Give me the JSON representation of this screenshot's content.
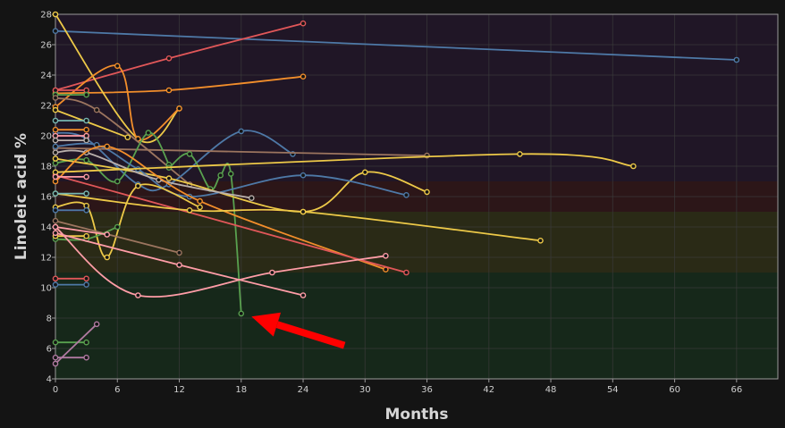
{
  "chart_data": {
    "type": "line",
    "title": "",
    "xlabel": "Months",
    "ylabel": "Linoleic acid %",
    "xlim": [
      0,
      70
    ],
    "ylim": [
      4,
      28
    ],
    "x_ticks": [
      0,
      6,
      12,
      18,
      24,
      30,
      36,
      42,
      48,
      54,
      60,
      66
    ],
    "y_ticks": [
      4,
      6,
      8,
      10,
      12,
      14,
      16,
      18,
      20,
      22,
      24,
      26,
      28
    ],
    "grid": true,
    "bands": [
      {
        "from": 4,
        "to": 11,
        "color": "#16281a"
      },
      {
        "from": 11,
        "to": 15,
        "color": "#2a2a16"
      },
      {
        "from": 15,
        "to": 17,
        "color": "#2c1618"
      },
      {
        "from": 17,
        "to": 28,
        "color": "#201626"
      }
    ],
    "series": [
      {
        "color": "#4e79a7",
        "x": [
          0,
          66
        ],
        "y": [
          26.9,
          25.0
        ]
      },
      {
        "color": "#e15759",
        "x": [
          0,
          11,
          24
        ],
        "y": [
          23.0,
          25.1,
          27.4
        ]
      },
      {
        "color": "#f28e2b",
        "x": [
          0,
          11,
          24
        ],
        "y": [
          22.8,
          23.0,
          23.9
        ]
      },
      {
        "color": "#edc948",
        "x": [
          0,
          8,
          12
        ],
        "y": [
          28.0,
          19.8,
          21.8
        ]
      },
      {
        "color": "#f28e2b",
        "x": [
          0,
          6,
          8,
          12
        ],
        "y": [
          21.9,
          24.6,
          19.8,
          21.8
        ]
      },
      {
        "color": "#e15759",
        "x": [
          0,
          3
        ],
        "y": [
          23.0,
          23.0
        ]
      },
      {
        "color": "#59a14f",
        "x": [
          0,
          3
        ],
        "y": [
          22.7,
          22.7
        ]
      },
      {
        "color": "#9c755f",
        "x": [
          0,
          4,
          13
        ],
        "y": [
          22.5,
          21.7,
          16.8
        ]
      },
      {
        "color": "#edc948",
        "x": [
          0,
          7
        ],
        "y": [
          21.7,
          19.9
        ]
      },
      {
        "color": "#76b7b2",
        "x": [
          0,
          3
        ],
        "y": [
          21.0,
          21.0
        ]
      },
      {
        "color": "#4e79a7",
        "x": [
          0,
          3,
          8,
          11,
          18,
          23
        ],
        "y": [
          20.2,
          19.8,
          16.8,
          16.8,
          20.3,
          18.8
        ]
      },
      {
        "color": "#ff9da7",
        "x": [
          0,
          3
        ],
        "y": [
          20.0,
          20.0
        ]
      },
      {
        "color": "#f28e2b",
        "x": [
          0,
          3
        ],
        "y": [
          20.4,
          20.4
        ]
      },
      {
        "color": "#bab0ac",
        "x": [
          0,
          3
        ],
        "y": [
          19.7,
          19.7
        ]
      },
      {
        "color": "#9c755f",
        "x": [
          0,
          36
        ],
        "y": [
          19.2,
          18.7
        ]
      },
      {
        "color": "#59a14f",
        "x": [
          0,
          3,
          6,
          9,
          11,
          11,
          13,
          15,
          16,
          17,
          18
        ],
        "y": [
          18.2,
          18.4,
          17.0,
          20.2,
          18.1,
          17.9,
          18.8,
          16.5,
          17.4,
          17.5,
          8.3
        ]
      },
      {
        "color": "#edc948",
        "x": [
          0,
          11,
          24,
          30,
          36
        ],
        "y": [
          18.5,
          17.2,
          15.0,
          17.6,
          16.3
        ]
      },
      {
        "color": "#4e79a7",
        "x": [
          0,
          4,
          8,
          13,
          24,
          34
        ],
        "y": [
          19.3,
          19.4,
          17.8,
          16.0,
          17.4,
          16.1
        ]
      },
      {
        "color": "#bab0ac",
        "x": [
          0,
          3,
          10,
          19
        ],
        "y": [
          18.9,
          18.9,
          17.1,
          15.9
        ]
      },
      {
        "color": "#f28e2b",
        "x": [
          0,
          5,
          14,
          32
        ],
        "y": [
          17.0,
          19.3,
          15.7,
          11.2
        ]
      },
      {
        "color": "#e15759",
        "x": [
          0,
          34
        ],
        "y": [
          17.4,
          11.0
        ]
      },
      {
        "color": "#edc948",
        "x": [
          0,
          45,
          56
        ],
        "y": [
          17.6,
          18.8,
          18.0
        ]
      },
      {
        "color": "#edc948",
        "x": [
          0,
          13,
          24,
          47
        ],
        "y": [
          16.2,
          15.1,
          15.0,
          13.1
        ]
      },
      {
        "color": "#ff9da7",
        "x": [
          0,
          3
        ],
        "y": [
          17.3,
          17.3
        ]
      },
      {
        "color": "#76b7b2",
        "x": [
          0,
          3
        ],
        "y": [
          16.2,
          16.2
        ]
      },
      {
        "color": "#edc948",
        "x": [
          0,
          3,
          5,
          8,
          14
        ],
        "y": [
          15.3,
          15.4,
          12.0,
          16.7,
          15.3
        ]
      },
      {
        "color": "#9c755f",
        "x": [
          0,
          12
        ],
        "y": [
          14.4,
          12.3
        ]
      },
      {
        "color": "#4e79a7",
        "x": [
          0,
          3
        ],
        "y": [
          15.1,
          15.1
        ]
      },
      {
        "color": "#59a14f",
        "x": [
          0,
          3,
          6
        ],
        "y": [
          13.2,
          13.2,
          14.0
        ]
      },
      {
        "color": "#ff9da7",
        "x": [
          0,
          5
        ],
        "y": [
          14.0,
          13.5
        ]
      },
      {
        "color": "#edc948",
        "x": [
          0,
          3
        ],
        "y": [
          13.4,
          13.4
        ]
      },
      {
        "color": "#ff9da7",
        "x": [
          0,
          8,
          21,
          32
        ],
        "y": [
          14.0,
          9.5,
          11.0,
          12.1
        ]
      },
      {
        "color": "#ff9da7",
        "x": [
          0,
          12,
          24
        ],
        "y": [
          13.6,
          11.5,
          9.5
        ]
      },
      {
        "color": "#e15759",
        "x": [
          0,
          3
        ],
        "y": [
          10.6,
          10.6
        ]
      },
      {
        "color": "#4e79a7",
        "x": [
          0,
          3
        ],
        "y": [
          10.2,
          10.2
        ]
      },
      {
        "color": "#59a14f",
        "x": [
          0,
          3
        ],
        "y": [
          6.4,
          6.4
        ]
      },
      {
        "color": "#b07aa1",
        "x": [
          0,
          4
        ],
        "y": [
          5.0,
          7.6
        ]
      },
      {
        "color": "#b07aa1",
        "x": [
          0,
          3
        ],
        "y": [
          5.4,
          5.4
        ]
      }
    ],
    "annotation": {
      "type": "arrow",
      "color": "#ff0000",
      "from": [
        28,
        6.2
      ],
      "to": [
        19,
        8.1
      ]
    }
  }
}
